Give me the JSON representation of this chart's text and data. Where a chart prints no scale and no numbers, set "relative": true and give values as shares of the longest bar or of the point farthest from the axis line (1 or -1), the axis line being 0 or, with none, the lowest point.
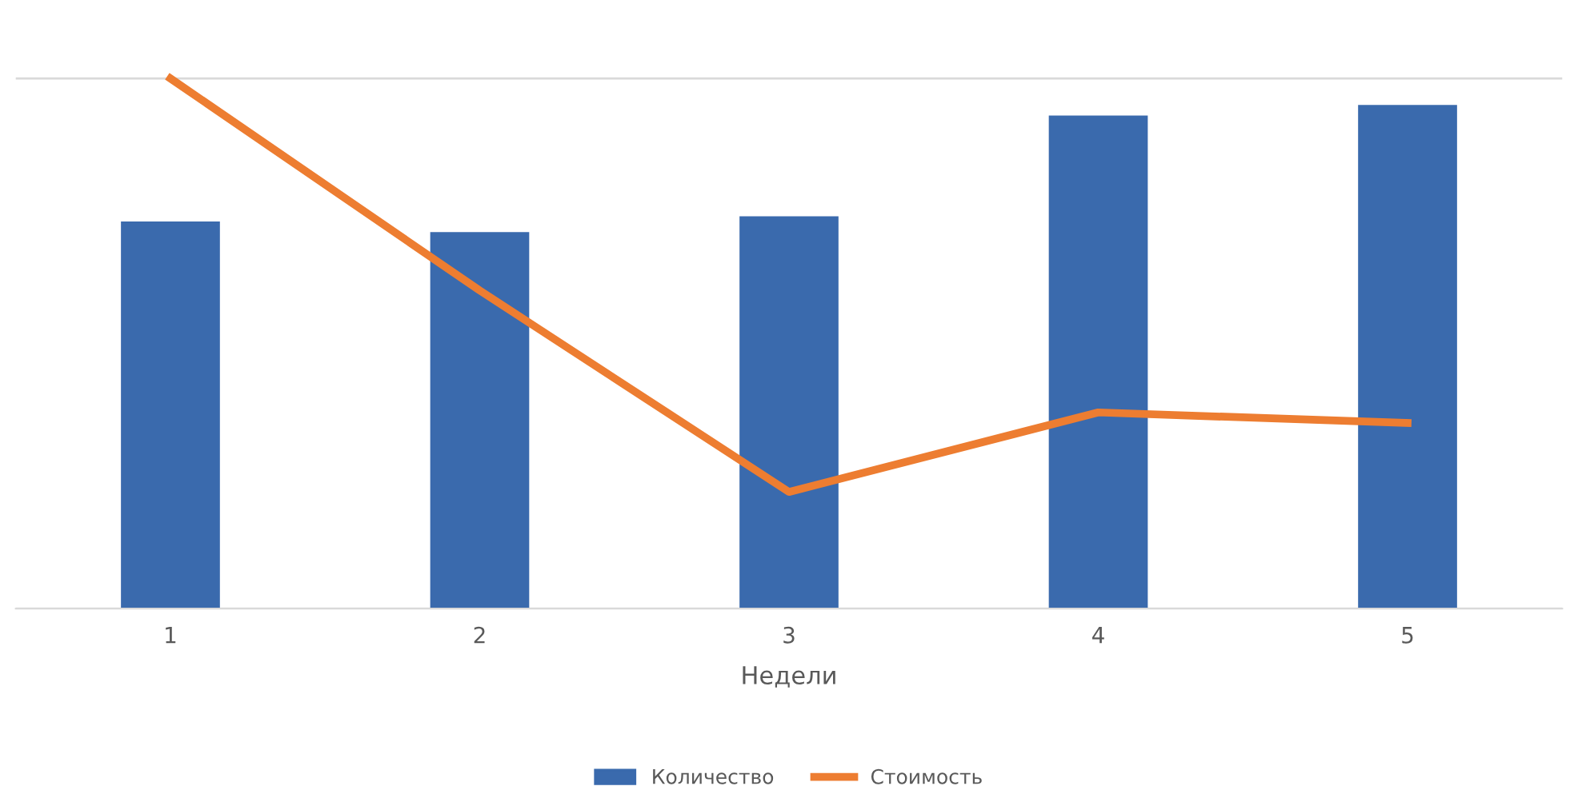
{
  "chart_data": {
    "type": "bar",
    "xlabel": "Недели",
    "categories": [
      "1",
      "2",
      "3",
      "4",
      "5"
    ],
    "relative": true,
    "grid": "y",
    "legend": "bottom",
    "series": [
      {
        "name": "Количество",
        "color": "#3a6aad",
        "values": [
          0.73,
          0.71,
          0.74,
          0.93,
          0.95
        ]
      },
      {
        "name": "Стоимость",
        "type": "line",
        "color": "#ed7d31",
        "values": [
          1.0,
          0.6,
          0.22,
          0.37,
          0.35
        ]
      }
    ]
  }
}
